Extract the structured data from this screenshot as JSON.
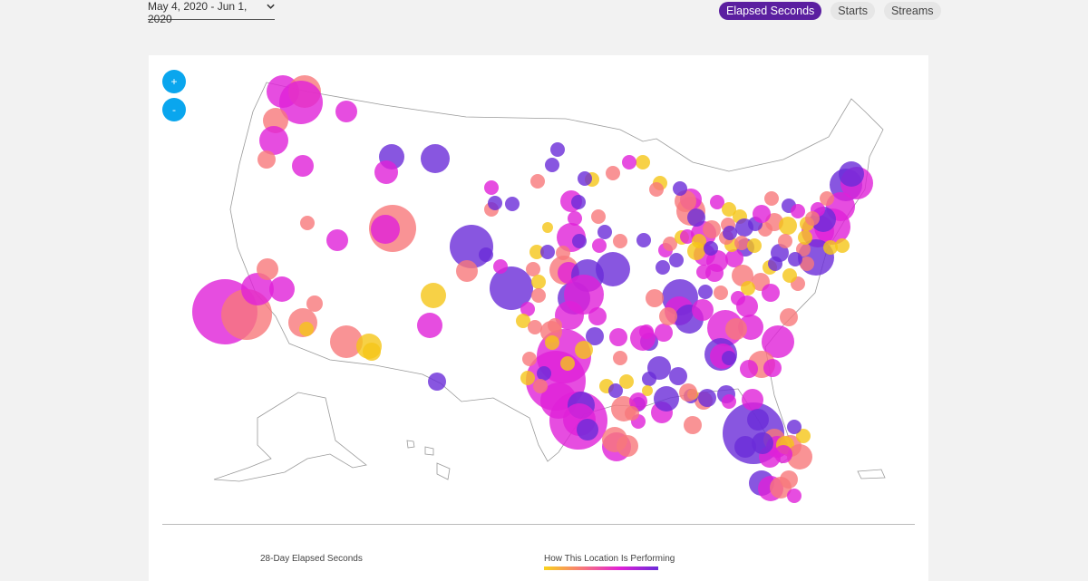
{
  "header": {
    "date_range": "May 4, 2020 - Jun 1, 2020",
    "date_range_icon": "chevron-down-icon",
    "tabs": [
      {
        "label": "Elapsed Seconds",
        "active": true
      },
      {
        "label": "Starts",
        "active": false
      },
      {
        "label": "Streams",
        "active": false
      }
    ]
  },
  "map": {
    "zoom_in_label": "+",
    "zoom_out_label": "-",
    "colors": {
      "gold": "#f5c518",
      "salmon": "#f7787a",
      "magenta": "#e020d8",
      "purple": "#6a2cd8",
      "tab_active": "#5b1fa0",
      "zoom_button": "#0aa6ee"
    }
  },
  "legend": {
    "size_title": "28-Day Elapsed Seconds",
    "color_title": "How This Location Is Performing",
    "color_scale": [
      "#f9d31c",
      "#f7787a",
      "#e020d8",
      "#6a2cd8"
    ]
  }
}
